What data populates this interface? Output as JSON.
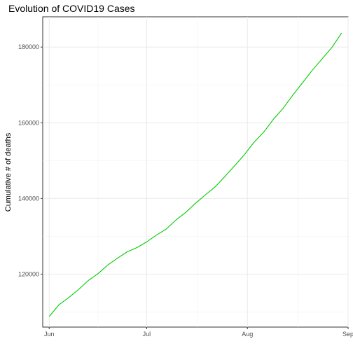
{
  "chart_data": {
    "type": "line",
    "title": "Evolution of COVID19 Cases",
    "xlabel": "",
    "ylabel": "Cumulative # of deaths",
    "x_tick_labels": [
      "Jun",
      "Jul",
      "Aug",
      "Sep"
    ],
    "y_tick_labels": [
      "120000",
      "140000",
      "160000",
      "180000"
    ],
    "y_ticks": [
      120000,
      140000,
      160000,
      180000
    ],
    "ylim": [
      106000,
      188000
    ],
    "xlim_days": [
      -2,
      92
    ],
    "x_tick_days": [
      0,
      30,
      61,
      92
    ],
    "grid": true,
    "legend": "none",
    "series": [
      {
        "name": "Cumulative # of deaths",
        "color": "#00cc00",
        "x_days": [
          0,
          3,
          6,
          9,
          12,
          15,
          18,
          21,
          24,
          27,
          30,
          33,
          36,
          39,
          42,
          45,
          48,
          51,
          54,
          57,
          60,
          63,
          66,
          69,
          72,
          75,
          78,
          81,
          84,
          87,
          90
        ],
        "values": [
          108800,
          111900,
          113800,
          115900,
          118300,
          120100,
          122400,
          124200,
          125900,
          127000,
          128500,
          130300,
          131900,
          134300,
          136300,
          138700,
          140900,
          143000,
          145700,
          148600,
          151500,
          154800,
          157500,
          160900,
          163800,
          167300,
          170600,
          173900,
          176900,
          179900,
          183700
        ]
      }
    ]
  }
}
